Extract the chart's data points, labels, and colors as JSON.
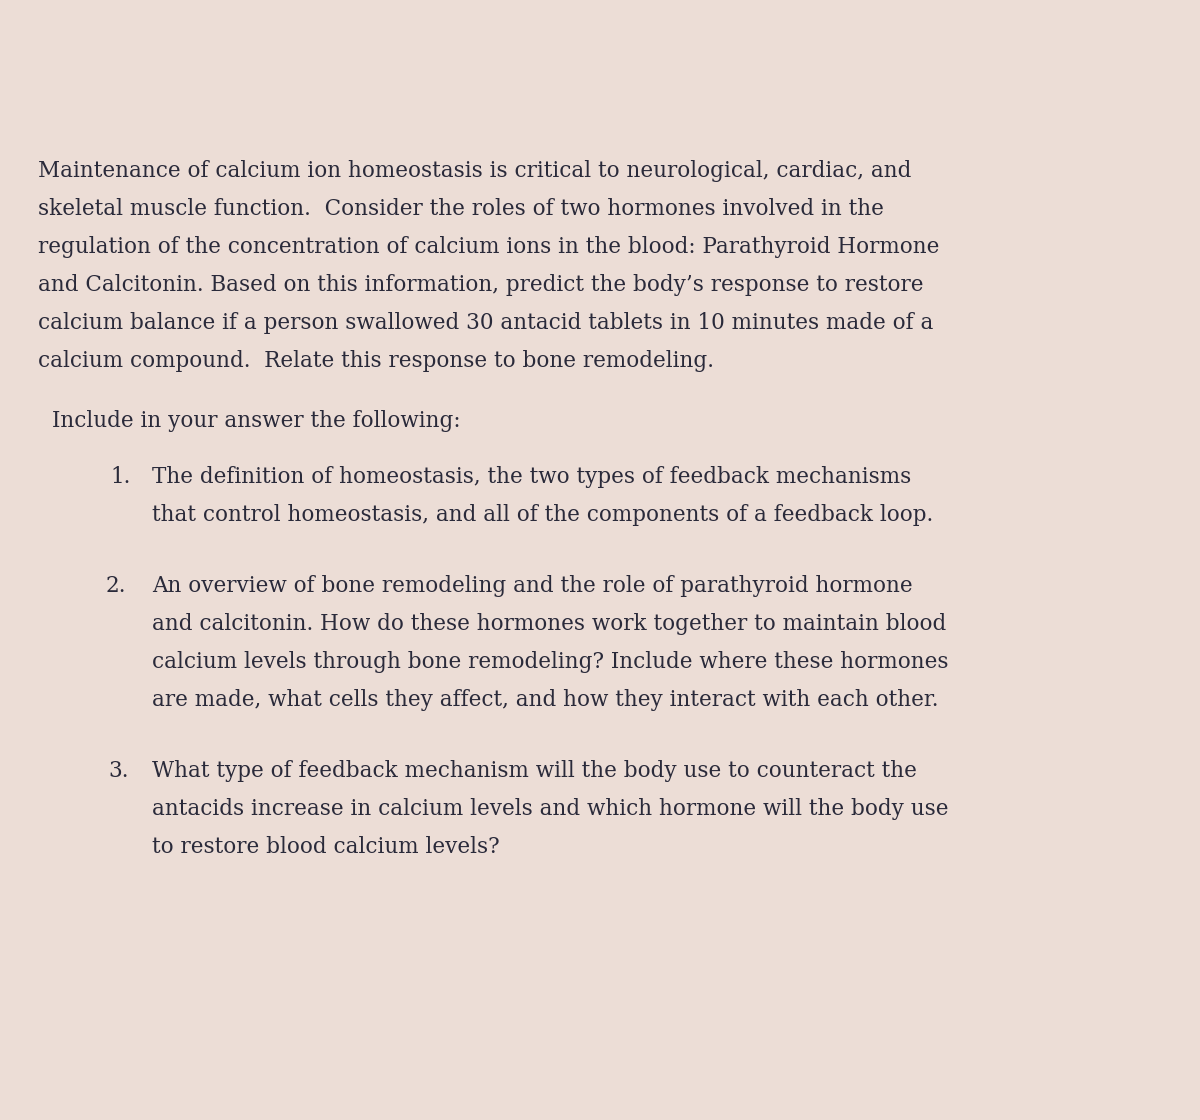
{
  "background_color": "#ecddd6",
  "text_color": "#2a2a3a",
  "font_family": "DejaVu Serif",
  "font_size_body": 15.5,
  "fig_width": 12.0,
  "fig_height": 11.2,
  "paragraph1_lines": [
    "Maintenance of calcium ion homeostasis is critical to neurological, cardiac, and",
    "skeletal muscle function.  Consider the roles of two hormones involved in the",
    "regulation of the concentration of calcium ions in the blood: Parathyroid Hormone",
    "and Calcitonin. Based on this information, predict the body’s response to restore",
    "calcium balance if a person swallowed 30 antacid tablets in 10 minutes made of a",
    "calcium compound.  Relate this response to bone remodeling."
  ],
  "intro": "Include in your answer the following:",
  "item1_num": "1.",
  "item1_lines": [
    "The definition of homeostasis, the two types of feedback mechanisms",
    "that control homeostasis, and all of the components of a feedback loop."
  ],
  "item2_num": "2.",
  "item2_lines": [
    "An overview of bone remodeling and the role of parathyroid hormone",
    "and calcitonin. How do these hormones work together to maintain blood",
    "calcium levels through bone remodeling? Include where these hormones",
    "are made, what cells they affect, and how they interact with each other."
  ],
  "item3_num": "3.",
  "item3_lines": [
    "What type of feedback mechanism will the body use to counteract the",
    "antacids increase in calcium levels and which hormone will the body use",
    "to restore blood calcium levels?"
  ]
}
